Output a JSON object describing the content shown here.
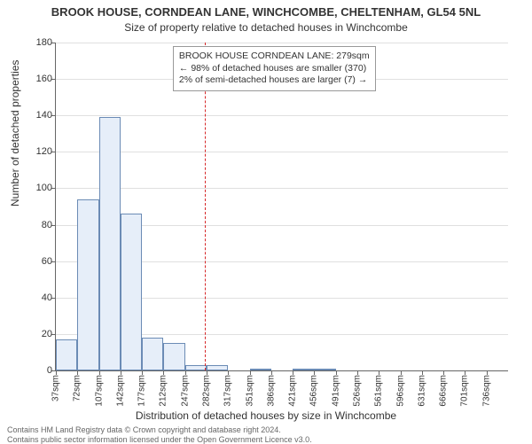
{
  "title_main": "BROOK HOUSE, CORNDEAN LANE, WINCHCOMBE, CHELTENHAM, GL54 5NL",
  "title_sub": "Size of property relative to detached houses in Winchcombe",
  "y_axis_label": "Number of detached properties",
  "x_axis_label": "Distribution of detached houses by size in Winchcombe",
  "footer_1": "Contains HM Land Registry data © Crown copyright and database right 2024.",
  "footer_2": "Contains public sector information licensed under the Open Government Licence v3.0.",
  "annotation": {
    "line1": "BROOK HOUSE CORNDEAN LANE: 279sqm",
    "line2": "← 98% of detached houses are smaller (370)",
    "line3": "2% of semi-detached houses are larger (7) →"
  },
  "chart": {
    "type": "histogram",
    "y_min": 0,
    "y_max": 180,
    "y_ticks": [
      0,
      20,
      40,
      60,
      80,
      100,
      120,
      140,
      160,
      180
    ],
    "x_categories": [
      "37sqm",
      "72sqm",
      "107sqm",
      "142sqm",
      "177sqm",
      "212sqm",
      "247sqm",
      "282sqm",
      "317sqm",
      "351sqm",
      "386sqm",
      "421sqm",
      "456sqm",
      "491sqm",
      "526sqm",
      "561sqm",
      "596sqm",
      "631sqm",
      "666sqm",
      "701sqm",
      "736sqm"
    ],
    "values": [
      17,
      94,
      139,
      86,
      18,
      15,
      3,
      3,
      0,
      1,
      0,
      1,
      1,
      0,
      0,
      0,
      0,
      0,
      0,
      0,
      0
    ],
    "bar_fill": "#e6eef9",
    "bar_stroke": "#6b8bb5",
    "grid_color": "#e0e0e0",
    "axis_color": "#666666",
    "background_color": "#ffffff",
    "reference_line_x": 279,
    "reference_line_color": "#d62728",
    "x_bin_start": 37,
    "x_bin_width": 35,
    "title_fontsize": 13,
    "subtitle_fontsize": 12,
    "label_fontsize": 12,
    "tick_fontsize": 11,
    "annotation_fontsize": 10.5,
    "footer_fontsize": 9
  }
}
